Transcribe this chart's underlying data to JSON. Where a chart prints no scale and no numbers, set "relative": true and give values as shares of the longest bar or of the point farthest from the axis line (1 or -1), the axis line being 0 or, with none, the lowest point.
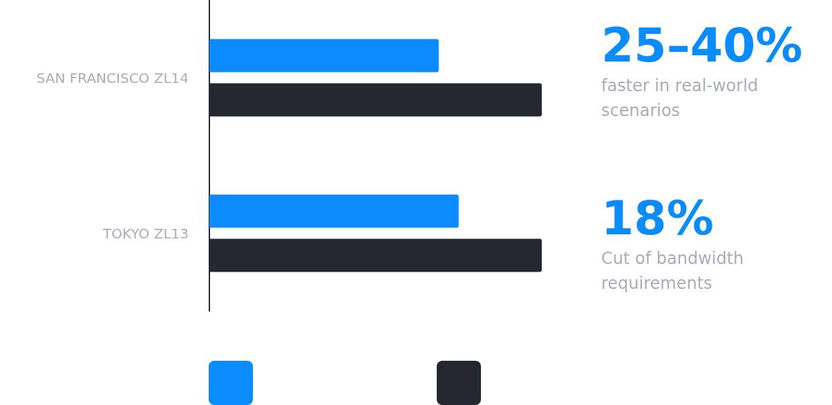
{
  "chart_data": {
    "type": "bar",
    "orientation": "horizontal",
    "relative": true,
    "categories": [
      "SAN FRANCISCO ZL14",
      "TOKYO ZL13"
    ],
    "series": [
      {
        "color": "#0a8cff",
        "values": [
          0.69,
          0.75
        ]
      },
      {
        "color": "#24272f",
        "values": [
          1,
          1
        ]
      }
    ],
    "annotations": [
      "25–40%",
      "faster in real-world scenarios",
      "18%",
      "Cut of bandwidth requirements"
    ]
  }
}
